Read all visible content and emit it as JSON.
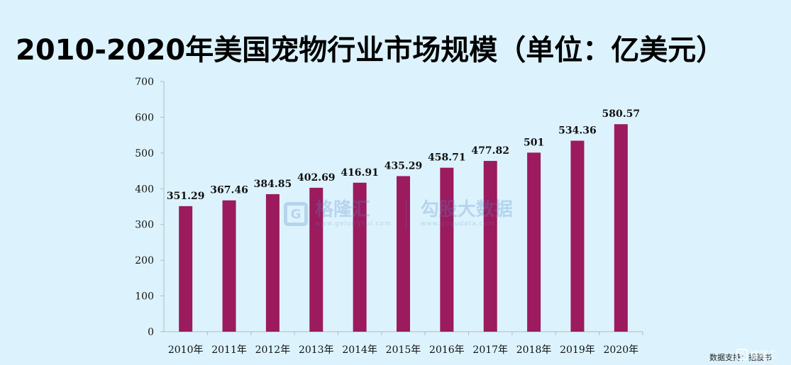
{
  "title": "2010-2020年美国宠物行业市场规模（单位：亿美元）",
  "chart_data": {
    "type": "bar",
    "title": "2010-2020年美国宠物行业市场规模（单位：亿美元）",
    "categories": [
      "2010年",
      "2011年",
      "2012年",
      "2013年",
      "2014年",
      "2015年",
      "2016年",
      "2017年",
      "2018年",
      "2019年",
      "2020年"
    ],
    "values": [
      351.29,
      367.46,
      384.85,
      402.69,
      416.91,
      435.29,
      458.71,
      477.82,
      501,
      534.36,
      580.57
    ],
    "data_labels": [
      "351.29",
      "367.46",
      "384.85",
      "402.69",
      "416.91",
      "435.29",
      "458.71",
      "477.82",
      "501",
      "534.36",
      "580.57"
    ],
    "xlabel": "",
    "ylabel": "",
    "ylim": [
      0,
      700
    ],
    "yticks": [
      0,
      100,
      200,
      300,
      400,
      500,
      600,
      700
    ],
    "bar_color": "#9c1a5e",
    "grid": false,
    "legend": "none"
  },
  "watermark": {
    "logo_glyph": "G",
    "brand": "格隆汇",
    "brand_url": "www.gelonghui.com",
    "brand2": "勾股大数据",
    "brand2_url": "www.gogudata.com"
  },
  "source": "数据支持：招股书",
  "corner_brand": "格隆汇",
  "corner_glyph": "G"
}
